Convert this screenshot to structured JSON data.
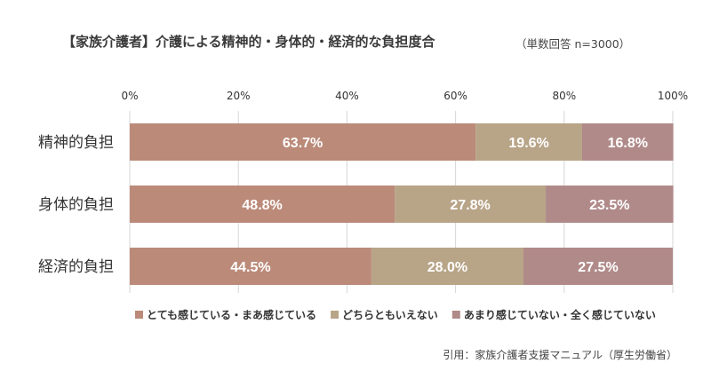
{
  "title": "【家族介護者】介護による精神的・身体的・経済的な負担度合",
  "subtitle": "（単数回答 n=3000）",
  "source": "引用：家族介護者支援マニュアル（厚生労働省）",
  "chart_data": {
    "type": "bar",
    "orientation": "horizontal",
    "stacked": true,
    "categories": [
      "精神的負担",
      "身体的負担",
      "経済的負担"
    ],
    "series": [
      {
        "name": "とても感じている・まあ感じている",
        "values": [
          63.7,
          48.8,
          44.5
        ],
        "color": "#bb8a79"
      },
      {
        "name": "どちらともいえない",
        "values": [
          19.6,
          27.8,
          28.0
        ],
        "color": "#b8a487"
      },
      {
        "name": "あまり感じていない・全く感じていない",
        "values": [
          16.8,
          23.5,
          27.5
        ],
        "color": "#b08a89"
      }
    ],
    "xlim": [
      0,
      100
    ],
    "xticks": [
      "0%",
      "20%",
      "40%",
      "60%",
      "80%",
      "100%"
    ],
    "grid": true,
    "legend_position": "bottom",
    "value_format": "%"
  }
}
